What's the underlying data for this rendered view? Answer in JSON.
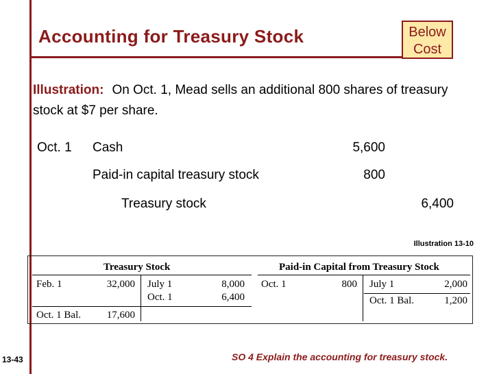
{
  "slide": {
    "title": "Accounting for Treasury Stock",
    "badge_line1": "Below",
    "badge_line2": "Cost",
    "illustration_label": "Illustration:",
    "illustration_text": "On Oct. 1, Mead sells an additional 800 shares of treasury stock at $7 per share.",
    "slide_number": "13-43",
    "objective": "SO 4  Explain the accounting for treasury stock."
  },
  "journal_entry": {
    "date": "Oct. 1",
    "rows": [
      {
        "account": "Cash",
        "debit": "5,600",
        "credit": ""
      },
      {
        "account": "Paid-in capital treasury stock",
        "debit": "800",
        "credit": ""
      },
      {
        "account": "Treasury stock",
        "debit": "",
        "credit": "6,400"
      }
    ]
  },
  "illustration_ref": "Illustration 13-10",
  "t_accounts": {
    "treasury_stock": {
      "title": "Treasury Stock",
      "left": [
        {
          "label": "Feb. 1",
          "value": "32,000"
        },
        {
          "label": "Oct. 1 Bal.",
          "value": "17,600"
        }
      ],
      "right": [
        {
          "label": "July 1",
          "value": "8,000"
        },
        {
          "label": "Oct. 1",
          "value": "6,400"
        }
      ]
    },
    "paid_in_capital": {
      "title": "Paid-in Capital from Treasury Stock",
      "left": [
        {
          "label": "Oct. 1",
          "value": "800"
        }
      ],
      "right": [
        {
          "label": "July 1",
          "value": "2,000"
        },
        {
          "label": "Oct. 1 Bal.",
          "value": "1,200"
        }
      ]
    }
  },
  "colors": {
    "accent": "#8b1a1a",
    "badge_bg": "#ffe9a9"
  }
}
